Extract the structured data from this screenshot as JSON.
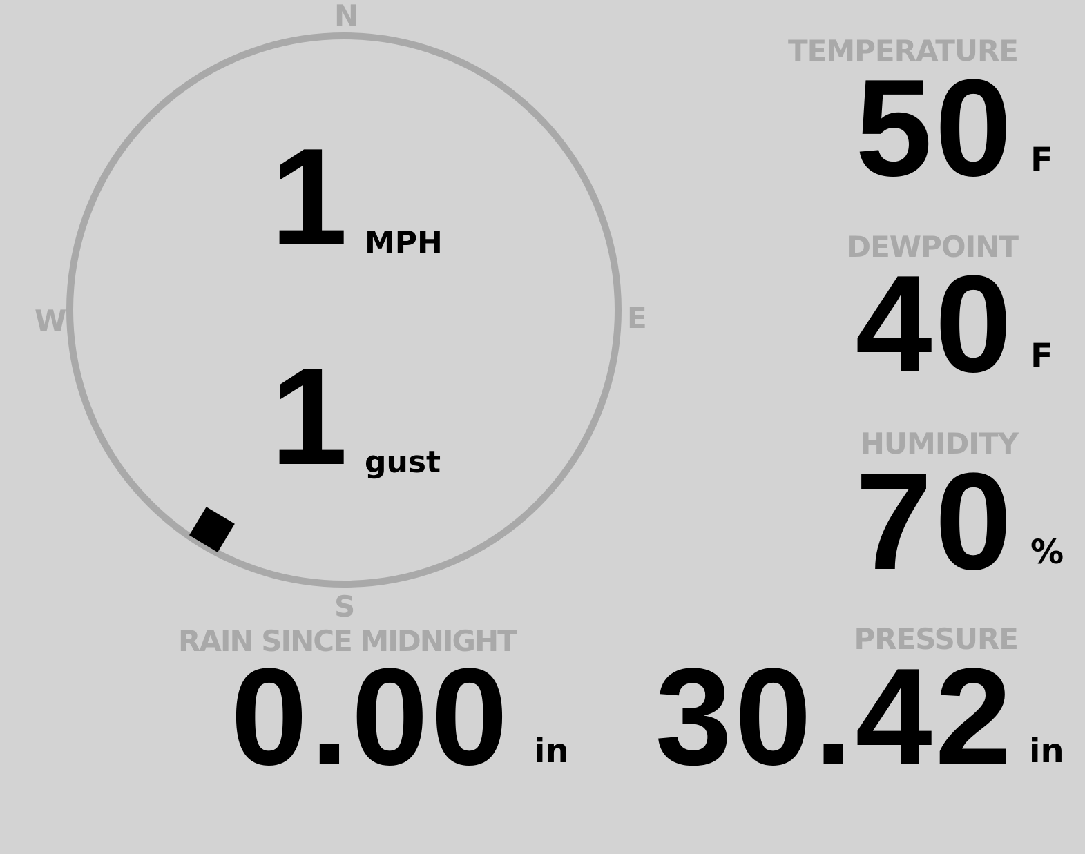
{
  "wind": {
    "speed": "1",
    "speed_unit": "MPH",
    "gust": "1",
    "gust_unit": "gust",
    "direction_degrees": 211,
    "compass": {
      "n": "N",
      "e": "E",
      "s": "S",
      "w": "W"
    }
  },
  "temperature": {
    "label": "TEMPERATURE",
    "value": "50",
    "unit": "F"
  },
  "dewpoint": {
    "label": "DEWPOINT",
    "value": "40",
    "unit": "F"
  },
  "humidity": {
    "label": "HUMIDITY",
    "value": "70",
    "unit": "%"
  },
  "rain": {
    "label": "RAIN SINCE MIDNIGHT",
    "value": "0.00",
    "unit": "in"
  },
  "pressure": {
    "label": "PRESSURE",
    "value": "30.42",
    "unit": "in"
  },
  "colors": {
    "background": "#d3d3d3",
    "label": "#a9a9a9",
    "value": "#000000"
  }
}
